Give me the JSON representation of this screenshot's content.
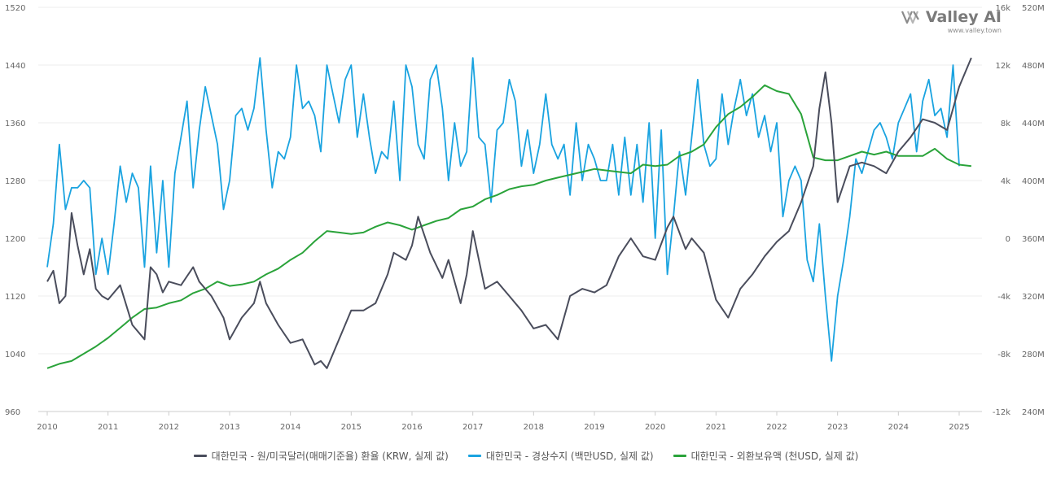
{
  "brand": {
    "name": "Valley AI",
    "url": "www.valley.town"
  },
  "colors": {
    "fx_rate": "#4a4d5c",
    "current_account": "#1aa3e0",
    "reserves": "#2aa33a",
    "grid": "#eeeeee"
  },
  "legend": [
    {
      "label": "대한민국 - 원/미국달러(매매기준율) 환율 (KRW, 실제 값)",
      "color": "#4a4d5c"
    },
    {
      "label": "대한민국 - 경상수지 (백만USD, 실제 값)",
      "color": "#1aa3e0"
    },
    {
      "label": "대한민국 - 외환보유액 (천USD, 실제 값)",
      "color": "#2aa33a"
    }
  ],
  "chart_data": {
    "type": "line",
    "x_ticks": [
      "2010",
      "2011",
      "2012",
      "2013",
      "2014",
      "2015",
      "2016",
      "2017",
      "2018",
      "2019",
      "2020",
      "2021",
      "2022",
      "2023",
      "2024",
      "2025"
    ],
    "y_left": {
      "ticks": [
        "960",
        "1040",
        "1120",
        "1200",
        "1280",
        "1360",
        "1440",
        "1520"
      ],
      "range": [
        960,
        1520
      ]
    },
    "y_right1": {
      "ticks": [
        "-12k",
        "-8k",
        "-4k",
        "0",
        "4k",
        "8k",
        "12k",
        "16k"
      ],
      "range": [
        -12000,
        16000
      ]
    },
    "y_right2": {
      "ticks": [
        "240M",
        "280M",
        "320M",
        "360M",
        "400M",
        "440M",
        "480M",
        "520M"
      ],
      "range": [
        240,
        520
      ]
    },
    "series": [
      {
        "name": "대한민국 - 원/미국달러(매매기준율) 환율 (KRW, 실제 값)",
        "axis": "left",
        "x": [
          2010.0,
          2010.1,
          2010.2,
          2010.3,
          2010.4,
          2010.5,
          2010.6,
          2010.7,
          2010.8,
          2010.9,
          2011.0,
          2011.2,
          2011.4,
          2011.6,
          2011.7,
          2011.8,
          2011.9,
          2012.0,
          2012.2,
          2012.4,
          2012.5,
          2012.7,
          2012.9,
          2013.0,
          2013.2,
          2013.4,
          2013.5,
          2013.6,
          2013.8,
          2014.0,
          2014.2,
          2014.4,
          2014.5,
          2014.6,
          2014.8,
          2015.0,
          2015.2,
          2015.4,
          2015.6,
          2015.7,
          2015.9,
          2016.0,
          2016.1,
          2016.3,
          2016.5,
          2016.6,
          2016.8,
          2016.9,
          2017.0,
          2017.2,
          2017.4,
          2017.6,
          2017.8,
          2018.0,
          2018.2,
          2018.4,
          2018.6,
          2018.8,
          2019.0,
          2019.2,
          2019.4,
          2019.6,
          2019.8,
          2020.0,
          2020.2,
          2020.3,
          2020.5,
          2020.6,
          2020.8,
          2021.0,
          2021.2,
          2021.4,
          2021.6,
          2021.8,
          2022.0,
          2022.2,
          2022.4,
          2022.6,
          2022.7,
          2022.8,
          2022.9,
          2023.0,
          2023.2,
          2023.4,
          2023.6,
          2023.8,
          2024.0,
          2024.2,
          2024.4,
          2024.6,
          2024.8,
          2025.0,
          2025.2
        ],
        "values": [
          1140,
          1155,
          1110,
          1120,
          1235,
          1190,
          1150,
          1185,
          1130,
          1120,
          1115,
          1135,
          1080,
          1060,
          1160,
          1150,
          1125,
          1140,
          1135,
          1160,
          1140,
          1120,
          1090,
          1060,
          1090,
          1110,
          1140,
          1110,
          1080,
          1055,
          1060,
          1025,
          1030,
          1020,
          1060,
          1100,
          1100,
          1110,
          1150,
          1180,
          1170,
          1190,
          1230,
          1180,
          1145,
          1170,
          1110,
          1150,
          1210,
          1130,
          1140,
          1120,
          1100,
          1075,
          1080,
          1060,
          1120,
          1130,
          1125,
          1135,
          1175,
          1200,
          1175,
          1170,
          1215,
          1230,
          1185,
          1200,
          1180,
          1115,
          1090,
          1130,
          1150,
          1175,
          1195,
          1210,
          1250,
          1300,
          1380,
          1430,
          1360,
          1250,
          1300,
          1305,
          1300,
          1290,
          1320,
          1340,
          1365,
          1360,
          1350,
          1410,
          1450
        ]
      },
      {
        "name": "대한민국 - 경상수지 (백만USD, 실제 값)",
        "axis": "right1",
        "x": [
          2010.0,
          2010.1,
          2010.2,
          2010.3,
          2010.4,
          2010.5,
          2010.6,
          2010.7,
          2010.8,
          2010.9,
          2011.0,
          2011.1,
          2011.2,
          2011.3,
          2011.4,
          2011.5,
          2011.6,
          2011.7,
          2011.8,
          2011.9,
          2012.0,
          2012.1,
          2012.2,
          2012.3,
          2012.4,
          2012.5,
          2012.6,
          2012.7,
          2012.8,
          2012.9,
          2013.0,
          2013.1,
          2013.2,
          2013.3,
          2013.4,
          2013.5,
          2013.6,
          2013.7,
          2013.8,
          2013.9,
          2014.0,
          2014.1,
          2014.2,
          2014.3,
          2014.4,
          2014.5,
          2014.6,
          2014.7,
          2014.8,
          2014.9,
          2015.0,
          2015.1,
          2015.2,
          2015.3,
          2015.4,
          2015.5,
          2015.6,
          2015.7,
          2015.8,
          2015.9,
          2016.0,
          2016.1,
          2016.2,
          2016.3,
          2016.4,
          2016.5,
          2016.6,
          2016.7,
          2016.8,
          2016.9,
          2017.0,
          2017.1,
          2017.2,
          2017.3,
          2017.4,
          2017.5,
          2017.6,
          2017.7,
          2017.8,
          2017.9,
          2018.0,
          2018.1,
          2018.2,
          2018.3,
          2018.4,
          2018.5,
          2018.6,
          2018.7,
          2018.8,
          2018.9,
          2019.0,
          2019.1,
          2019.2,
          2019.3,
          2019.4,
          2019.5,
          2019.6,
          2019.7,
          2019.8,
          2019.9,
          2020.0,
          2020.1,
          2020.2,
          2020.3,
          2020.4,
          2020.5,
          2020.6,
          2020.7,
          2020.8,
          2020.9,
          2021.0,
          2021.1,
          2021.2,
          2021.3,
          2021.4,
          2021.5,
          2021.6,
          2021.7,
          2021.8,
          2021.9,
          2022.0,
          2022.1,
          2022.2,
          2022.3,
          2022.4,
          2022.5,
          2022.6,
          2022.7,
          2022.8,
          2022.9,
          2023.0,
          2023.1,
          2023.2,
          2023.3,
          2023.4,
          2023.5,
          2023.6,
          2023.7,
          2023.8,
          2023.9,
          2024.0,
          2024.1,
          2024.2,
          2024.3,
          2024.4,
          2024.5,
          2024.6,
          2024.7,
          2024.8,
          2024.9,
          2025.0
        ],
        "values": [
          -2000,
          1000,
          6500,
          2000,
          3500,
          3500,
          4000,
          3500,
          -2500,
          0,
          -2500,
          1000,
          5000,
          2500,
          4500,
          3500,
          -2000,
          5000,
          -1000,
          4000,
          -2000,
          4500,
          7000,
          9500,
          3500,
          7500,
          10500,
          8500,
          6500,
          2000,
          4000,
          8500,
          9000,
          7500,
          9000,
          12500,
          7500,
          3500,
          6000,
          5500,
          7000,
          12000,
          9000,
          9500,
          8500,
          6000,
          12000,
          10000,
          8000,
          11000,
          12000,
          7000,
          10000,
          7000,
          4500,
          6000,
          5500,
          9500,
          4000,
          12000,
          10500,
          6500,
          5500,
          11000,
          12000,
          9000,
          4000,
          8000,
          5000,
          6000,
          12500,
          7000,
          6500,
          2500,
          7500,
          8000,
          11000,
          9500,
          5000,
          7500,
          4500,
          6500,
          10000,
          6500,
          5500,
          6500,
          3000,
          8000,
          4000,
          6500,
          5500,
          4000,
          4000,
          6500,
          3000,
          7000,
          3000,
          6500,
          2500,
          8000,
          0,
          7500,
          -2500,
          1500,
          6000,
          3000,
          7000,
          11000,
          6500,
          5000,
          5500,
          10000,
          6500,
          9000,
          11000,
          8500,
          10000,
          7000,
          8500,
          6000,
          8000,
          1500,
          4000,
          5000,
          4000,
          -1500,
          -3000,
          1000,
          -4000,
          -8500,
          -4000,
          -1500,
          1500,
          5500,
          4500,
          6000,
          7500,
          8000,
          7000,
          5500,
          8000,
          9000,
          10000,
          6000,
          9500,
          11000,
          8500,
          9000,
          7000,
          12000,
          5000
        ]
      },
      {
        "name": "대한민국 - 외환보유액 (천USD, 실제 값)",
        "axis": "right2",
        "x": [
          2010.0,
          2010.2,
          2010.4,
          2010.6,
          2010.8,
          2011.0,
          2011.2,
          2011.4,
          2011.6,
          2011.8,
          2012.0,
          2012.2,
          2012.4,
          2012.6,
          2012.8,
          2013.0,
          2013.2,
          2013.4,
          2013.6,
          2013.8,
          2014.0,
          2014.2,
          2014.4,
          2014.6,
          2014.8,
          2015.0,
          2015.2,
          2015.4,
          2015.6,
          2015.8,
          2016.0,
          2016.2,
          2016.4,
          2016.6,
          2016.8,
          2017.0,
          2017.2,
          2017.4,
          2017.6,
          2017.8,
          2018.0,
          2018.2,
          2018.4,
          2018.6,
          2018.8,
          2019.0,
          2019.2,
          2019.4,
          2019.6,
          2019.8,
          2020.0,
          2020.2,
          2020.4,
          2020.6,
          2020.8,
          2021.0,
          2021.2,
          2021.4,
          2021.6,
          2021.8,
          2022.0,
          2022.2,
          2022.4,
          2022.6,
          2022.8,
          2023.0,
          2023.2,
          2023.4,
          2023.6,
          2023.8,
          2024.0,
          2024.2,
          2024.4,
          2024.6,
          2024.8,
          2025.0,
          2025.2
        ],
        "values": [
          270,
          273,
          275,
          280,
          285,
          291,
          298,
          305,
          311,
          312,
          315,
          317,
          322,
          325,
          330,
          327,
          328,
          330,
          335,
          339,
          345,
          350,
          358,
          365,
          364,
          363,
          364,
          368,
          371,
          369,
          366,
          369,
          372,
          374,
          380,
          382,
          387,
          390,
          394,
          396,
          397,
          400,
          402,
          404,
          406,
          408,
          407,
          406,
          405,
          411,
          410,
          411,
          417,
          420,
          425,
          437,
          446,
          451,
          458,
          466,
          462,
          460,
          446,
          416,
          414,
          414,
          417,
          420,
          418,
          420,
          417,
          417,
          417,
          422,
          415,
          411,
          410
        ]
      }
    ]
  }
}
